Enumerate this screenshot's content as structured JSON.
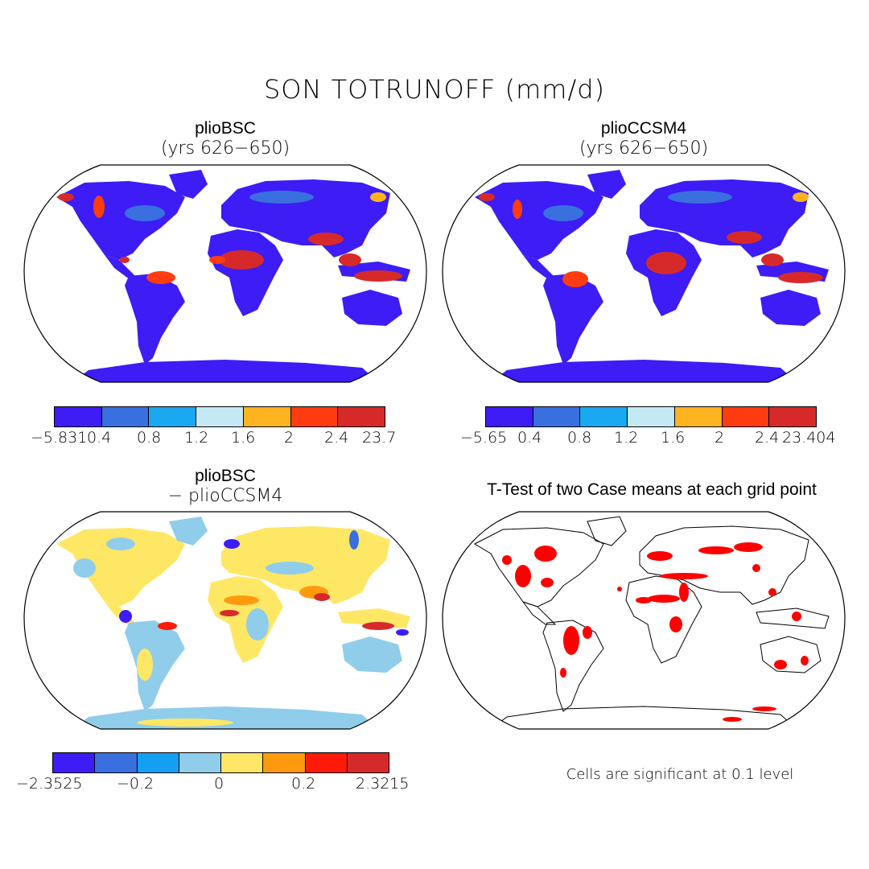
{
  "figure": {
    "title": "SON TOTRUNOFF (mm/d)"
  },
  "panels": {
    "top_left": {
      "name": "plioBSC",
      "subtitle": "(yrs 626−650)",
      "colorbar": {
        "colors": [
          "#3d1cf5",
          "#3a6fe0",
          "#1aa8f0",
          "#c5e8f5",
          "#ffb31f",
          "#ff3c10",
          "#d62a2a"
        ],
        "labels": [
          "−5.831",
          "0.4",
          "0.8",
          "1.2",
          "1.6",
          "2",
          "2.4",
          "23.7"
        ]
      }
    },
    "top_right": {
      "name": "plioCCSM4",
      "subtitle": "(yrs 626−650)",
      "colorbar": {
        "colors": [
          "#3d1cf5",
          "#3a6fe0",
          "#1aa8f0",
          "#c5e8f5",
          "#ffb31f",
          "#ff3c10",
          "#d62a2a"
        ],
        "labels": [
          "−5.65",
          "0.4",
          "0.8",
          "1.2",
          "1.6",
          "2",
          "2.4",
          "23.404"
        ]
      }
    },
    "bottom_left": {
      "name": "plioBSC",
      "subtitle": "− plioCCSM4",
      "colorbar": {
        "colors": [
          "#3d1cf5",
          "#3a6fe0",
          "#13a0f2",
          "#90cdea",
          "#ffe766",
          "#ff9a0e",
          "#ff1a0a",
          "#d62a2a"
        ],
        "labels": [
          "−2.3525",
          "−0.2",
          "0",
          "0.2",
          "2.3215"
        ]
      }
    },
    "bottom_right": {
      "name": "T-Test of two Case means at each grid point",
      "note": "Cells are significant at 0.1 level",
      "significant_color": "#ff0000"
    }
  }
}
